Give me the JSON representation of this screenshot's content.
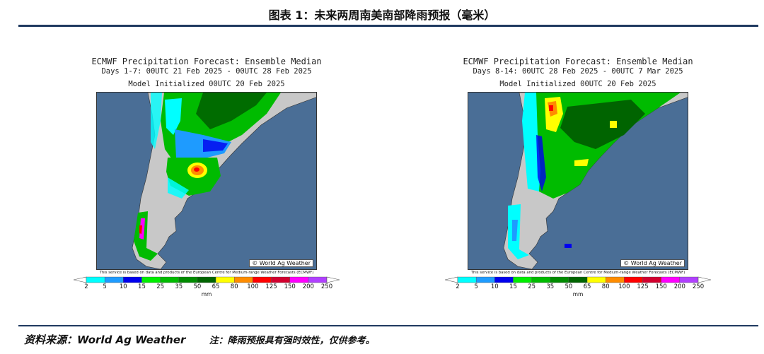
{
  "figure_title": "图表 1：未来两周南美南部降雨预报（毫米）",
  "panels": [
    {
      "title": "ECMWF Precipitation Forecast: Ensemble Median",
      "subtitle": "Days 1-7: 00UTC 21 Feb 2025 - 00UTC 28 Feb 2025",
      "model_line": "Model Initialized 00UTC 20 Feb 2025",
      "credit": "© World Ag Weather",
      "disclaimer": "This service is based on data and products of the European Centre for Medium-range Weather Forecasts (ECMWF)"
    },
    {
      "title": "ECMWF Precipitation Forecast: Ensemble Median",
      "subtitle": "Days 8-14: 00UTC 28 Feb 2025 - 00UTC 7 Mar 2025",
      "model_line": "Model Initialized 00UTC 20 Feb 2025",
      "credit": "© World Ag Weather",
      "disclaimer": "This service is based on data and products of the European Centre for Medium-range Weather Forecasts (ECMWF)"
    }
  ],
  "colorbar": {
    "ticks": [
      "2",
      "5",
      "10",
      "15",
      "25",
      "35",
      "50",
      "65",
      "80",
      "100",
      "125",
      "150",
      "200",
      "250"
    ],
    "unit": "mm",
    "colors": [
      "#00ffff",
      "#1e9bff",
      "#0000ee",
      "#00ee00",
      "#00bb00",
      "#008b00",
      "#006400",
      "#ffff00",
      "#ff8c00",
      "#ff0000",
      "#d2002e",
      "#ff00ff",
      "#b040ff"
    ]
  },
  "colors": {
    "ocean": "#4a6e96",
    "land_dry": "#c8c8c8",
    "rule": "#1f3a60"
  },
  "footer": {
    "source": "资料来源：World Ag Weather",
    "note": "注：降雨预报具有强时效性，仅供参考。"
  }
}
